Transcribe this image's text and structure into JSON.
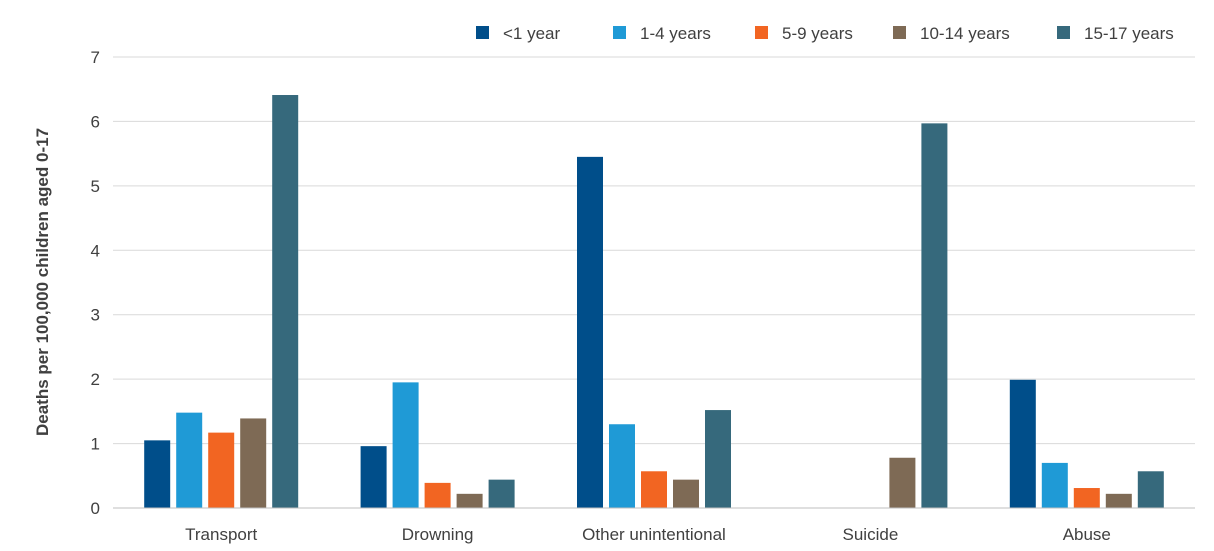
{
  "chart_data": {
    "type": "bar",
    "title": "",
    "xlabel": "",
    "ylabel": "Deaths per 100,000 children aged 0-17",
    "ylim": [
      0,
      7
    ],
    "yticks": [
      "0",
      "1",
      "2",
      "3",
      "4",
      "5",
      "6",
      "7"
    ],
    "grid": true,
    "legend_position": "top",
    "categories": [
      "Transport",
      "Drowning",
      "Other unintentional",
      "Suicide",
      "Abuse"
    ],
    "series": [
      {
        "name": "<1 year",
        "color": "#004e8a",
        "values": [
          1.05,
          0.96,
          5.45,
          null,
          1.99
        ]
      },
      {
        "name": "1-4 years",
        "color": "#1f9ad6",
        "values": [
          1.48,
          1.95,
          1.3,
          null,
          0.7
        ]
      },
      {
        "name": "5-9 years",
        "color": "#f26522",
        "values": [
          1.17,
          0.39,
          0.57,
          null,
          0.31
        ]
      },
      {
        "name": "10-14 years",
        "color": "#7e6a55",
        "values": [
          1.39,
          0.22,
          0.44,
          0.78,
          0.22
        ]
      },
      {
        "name": "15-17 years",
        "color": "#36697c",
        "values": [
          6.41,
          0.44,
          1.52,
          5.97,
          0.57
        ]
      }
    ]
  }
}
